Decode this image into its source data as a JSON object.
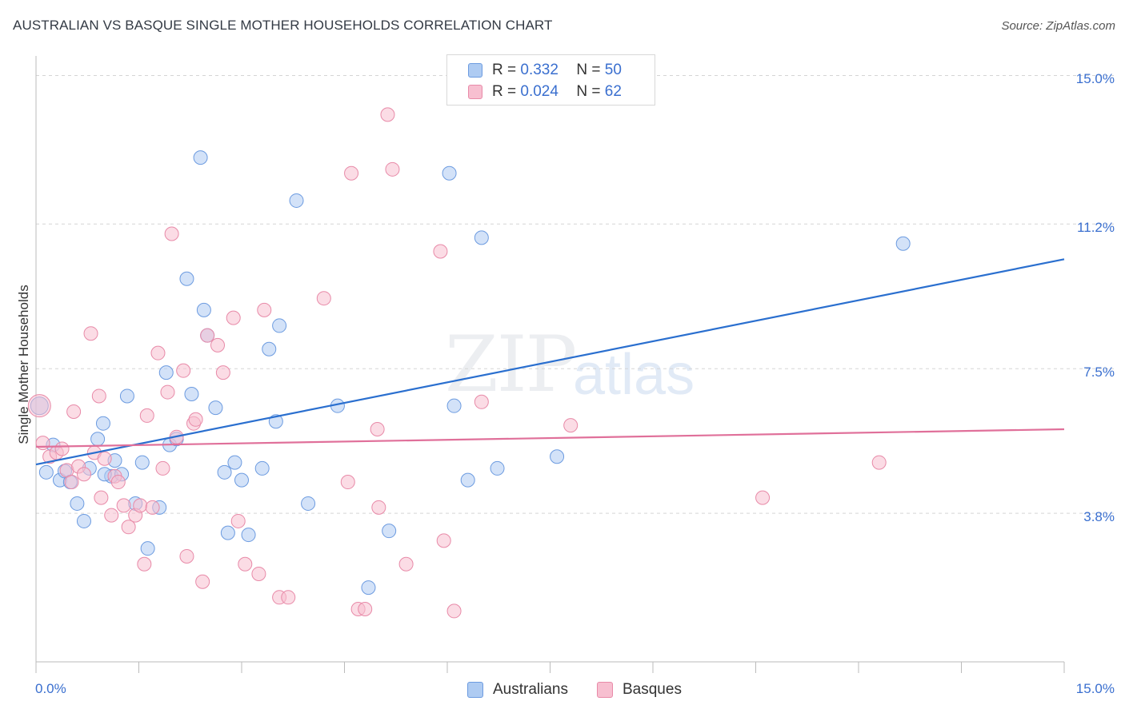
{
  "header": {
    "title": "AUSTRALIAN VS BASQUE SINGLE MOTHER HOUSEHOLDS CORRELATION CHART",
    "source": "Source: ZipAtlas.com"
  },
  "watermark": {
    "zip": "ZIP",
    "atlas": "atlas"
  },
  "legend": {
    "rows": [
      {
        "r_label": "R =",
        "r_value": "0.332",
        "n_label": "N =",
        "n_value": "50"
      },
      {
        "r_label": "R =",
        "r_value": "0.024",
        "n_label": "N =",
        "n_value": "62"
      }
    ]
  },
  "bottom_legend": {
    "items": [
      "Australians",
      "Basques"
    ]
  },
  "colors": {
    "australians_fill": "#aecbf2",
    "australians_stroke": "#6c9be0",
    "australians_line": "#2a6fcf",
    "basques_fill": "#f7bfd0",
    "basques_stroke": "#e88aa8",
    "basques_line": "#e0709a",
    "axis_text": "#3a6fcf",
    "grid": "#d5d5d5"
  },
  "chart_data": {
    "type": "scatter",
    "title": "AUSTRALIAN VS BASQUE SINGLE MOTHER HOUSEHOLDS CORRELATION CHART",
    "xlabel": "",
    "ylabel": "Single Mother Households",
    "xlim": [
      0,
      15
    ],
    "ylim": [
      0,
      15.5
    ],
    "x_tick_labels": [
      "0.0%",
      "15.0%"
    ],
    "y_ticks": [
      3.8,
      7.5,
      11.2,
      15.0
    ],
    "y_tick_labels": [
      "3.8%",
      "7.5%",
      "11.2%",
      "15.0%"
    ],
    "grid": "horizontal dashed",
    "legend_position": "top-center",
    "series": [
      {
        "name": "Australians",
        "r": 0.332,
        "n": 50,
        "trend": {
          "x0": 0.0,
          "y0": 5.05,
          "x1": 15.0,
          "y1": 10.3
        },
        "points": [
          [
            0.05,
            6.55
          ],
          [
            0.15,
            4.85
          ],
          [
            0.25,
            5.55
          ],
          [
            0.35,
            4.65
          ],
          [
            0.42,
            4.88
          ],
          [
            0.5,
            4.6
          ],
          [
            0.6,
            4.05
          ],
          [
            0.7,
            3.6
          ],
          [
            0.78,
            4.95
          ],
          [
            0.9,
            5.7
          ],
          [
            0.98,
            6.1
          ],
          [
            1.1,
            4.75
          ],
          [
            1.15,
            5.15
          ],
          [
            1.25,
            4.8
          ],
          [
            1.33,
            6.8
          ],
          [
            1.45,
            4.05
          ],
          [
            1.55,
            5.1
          ],
          [
            1.63,
            2.9
          ],
          [
            1.8,
            3.95
          ],
          [
            1.9,
            7.4
          ],
          [
            1.95,
            5.55
          ],
          [
            2.05,
            5.7
          ],
          [
            2.2,
            9.8
          ],
          [
            2.27,
            6.85
          ],
          [
            2.4,
            12.9
          ],
          [
            2.45,
            9.0
          ],
          [
            2.5,
            8.35
          ],
          [
            2.62,
            6.5
          ],
          [
            2.75,
            4.85
          ],
          [
            2.8,
            3.3
          ],
          [
            2.9,
            5.1
          ],
          [
            3.0,
            4.65
          ],
          [
            3.1,
            3.25
          ],
          [
            3.3,
            4.95
          ],
          [
            3.4,
            8.0
          ],
          [
            3.5,
            6.15
          ],
          [
            3.55,
            8.6
          ],
          [
            3.8,
            11.8
          ],
          [
            3.97,
            4.05
          ],
          [
            4.4,
            6.55
          ],
          [
            4.85,
            1.9
          ],
          [
            5.15,
            3.35
          ],
          [
            6.03,
            12.5
          ],
          [
            6.1,
            6.55
          ],
          [
            6.3,
            4.65
          ],
          [
            6.5,
            10.85
          ],
          [
            6.73,
            4.95
          ],
          [
            7.6,
            5.25
          ],
          [
            12.65,
            10.7
          ],
          [
            1.0,
            4.8
          ]
        ]
      },
      {
        "name": "Basques",
        "r": 0.024,
        "n": 62,
        "trend": {
          "x0": 0.0,
          "y0": 5.5,
          "x1": 15.0,
          "y1": 5.95
        },
        "points": [
          [
            0.05,
            6.55
          ],
          [
            0.1,
            5.6
          ],
          [
            0.2,
            5.25
          ],
          [
            0.3,
            5.35
          ],
          [
            0.38,
            5.45
          ],
          [
            0.45,
            4.9
          ],
          [
            0.52,
            4.6
          ],
          [
            0.55,
            6.4
          ],
          [
            0.62,
            5.0
          ],
          [
            0.7,
            4.8
          ],
          [
            0.8,
            8.4
          ],
          [
            0.85,
            5.35
          ],
          [
            0.92,
            6.8
          ],
          [
            1.0,
            5.2
          ],
          [
            1.1,
            3.75
          ],
          [
            1.15,
            4.75
          ],
          [
            1.2,
            4.6
          ],
          [
            1.28,
            4.0
          ],
          [
            1.35,
            3.45
          ],
          [
            1.45,
            3.75
          ],
          [
            1.52,
            4.0
          ],
          [
            1.58,
            2.5
          ],
          [
            1.62,
            6.3
          ],
          [
            1.7,
            3.95
          ],
          [
            1.78,
            7.9
          ],
          [
            1.85,
            4.95
          ],
          [
            1.92,
            6.9
          ],
          [
            1.98,
            10.95
          ],
          [
            2.05,
            5.75
          ],
          [
            2.15,
            7.45
          ],
          [
            2.2,
            2.7
          ],
          [
            2.3,
            6.1
          ],
          [
            2.33,
            6.2
          ],
          [
            2.43,
            2.05
          ],
          [
            2.5,
            8.35
          ],
          [
            2.65,
            8.1
          ],
          [
            2.73,
            7.4
          ],
          [
            2.88,
            8.8
          ],
          [
            2.95,
            3.6
          ],
          [
            3.05,
            2.5
          ],
          [
            3.25,
            2.25
          ],
          [
            3.33,
            9.0
          ],
          [
            3.55,
            1.65
          ],
          [
            3.68,
            1.65
          ],
          [
            4.2,
            9.3
          ],
          [
            4.55,
            4.6
          ],
          [
            4.6,
            12.5
          ],
          [
            4.7,
            1.35
          ],
          [
            4.8,
            1.35
          ],
          [
            4.98,
            5.95
          ],
          [
            5.0,
            3.95
          ],
          [
            5.13,
            14.0
          ],
          [
            5.2,
            12.6
          ],
          [
            5.4,
            2.5
          ],
          [
            5.9,
            10.5
          ],
          [
            5.95,
            3.1
          ],
          [
            6.1,
            1.3
          ],
          [
            6.5,
            6.65
          ],
          [
            7.8,
            6.05
          ],
          [
            10.6,
            4.2
          ],
          [
            12.3,
            5.1
          ],
          [
            0.95,
            4.2
          ]
        ]
      }
    ]
  }
}
